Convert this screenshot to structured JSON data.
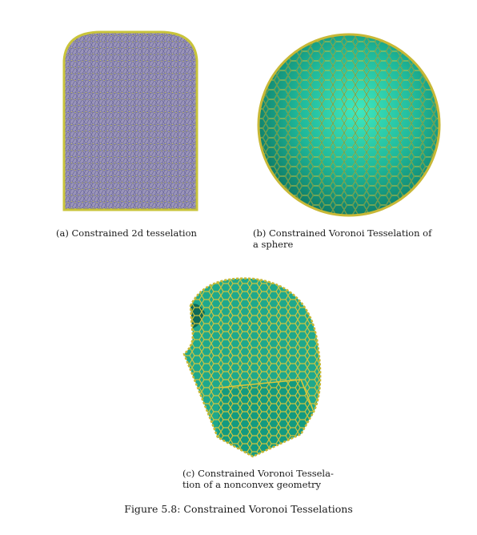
{
  "subfigures": [
    {
      "caption": "(a) Constrained 2d tesselation",
      "colors": {
        "fill": "#9a94b8",
        "edge": "#d8d84a",
        "border": "#c9c43a"
      }
    },
    {
      "caption_line1": "(b) Constrained Voronoi Tesselation of",
      "caption_line2": "a sphere",
      "colors": {
        "center": "#3fe8c0",
        "mid": "#1fb89a",
        "rim": "#0e7a66",
        "edge": "#d8c83a"
      }
    },
    {
      "caption_line1": "(c) Constrained Voronoi Tessela-",
      "caption_line2": "tion of a nonconvex geometry",
      "colors": {
        "fill": "#1fa88c",
        "dark": "#0d6a58",
        "edge": "#d9c63c"
      }
    }
  ],
  "figure_caption": "Figure 5.8: Constrained Voronoi Tesselations"
}
